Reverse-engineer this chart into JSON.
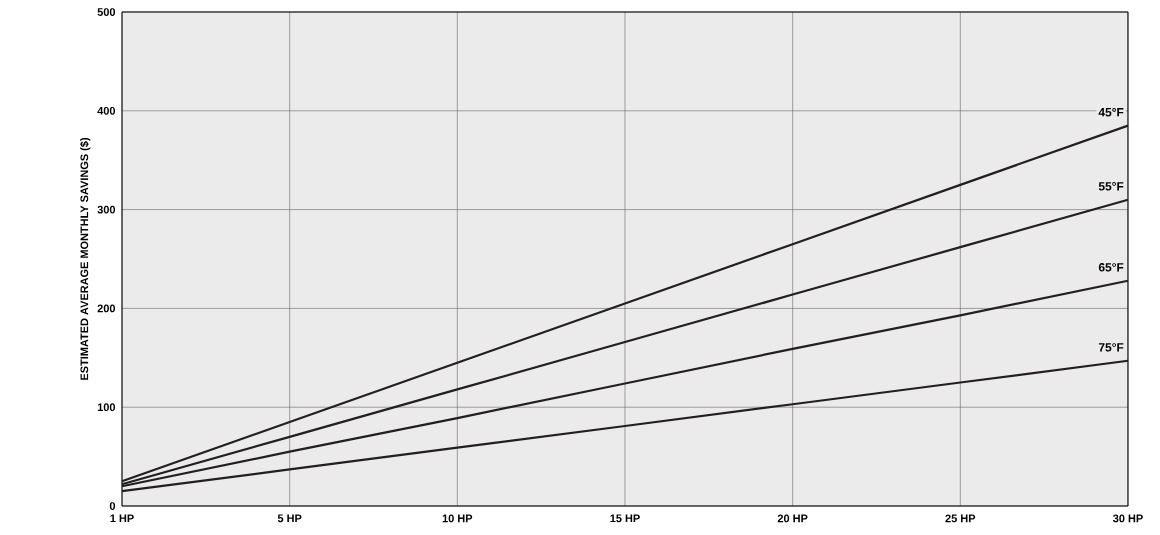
{
  "chart_data": {
    "type": "line",
    "ylabel": "ESTIMATED AVERAGE MONTHLY SAVINGS ($)",
    "categories": [
      "1 HP",
      "5 HP",
      "10 HP",
      "15 HP",
      "20 HP",
      "25 HP",
      "30 HP"
    ],
    "series": [
      {
        "name": "45°F",
        "color": "#231f20",
        "values": [
          25,
          85,
          145,
          205,
          265,
          325,
          385
        ]
      },
      {
        "name": "55°F",
        "color": "#231f20",
        "values": [
          22,
          70,
          118,
          166,
          214,
          262,
          310
        ]
      },
      {
        "name": "65°F",
        "color": "#231f20",
        "values": [
          20,
          55,
          89,
          124,
          159,
          193,
          228
        ]
      },
      {
        "name": "75°F",
        "color": "#231f20",
        "values": [
          15,
          37,
          59,
          81,
          103,
          125,
          147
        ]
      }
    ],
    "ylim": [
      0,
      500
    ],
    "yticks": [
      0,
      100,
      200,
      300,
      400,
      500
    ],
    "grid": true,
    "marker": "none",
    "line_style": "solid"
  }
}
